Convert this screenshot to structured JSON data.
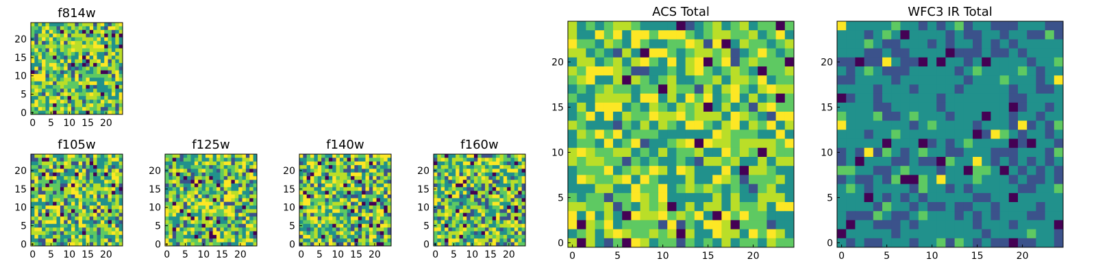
{
  "figure": {
    "description_colormap": "viridis",
    "palette": [
      "#440154",
      "#3b528b",
      "#21918c",
      "#5ec962",
      "#bade28",
      "#fde725"
    ]
  },
  "chart_data": [
    {
      "type": "heatmap",
      "title": "f814w",
      "grid_size": 25,
      "xticks": [
        "0",
        "5",
        "10",
        "15",
        "20"
      ],
      "yticks": [
        "0",
        "5",
        "10",
        "15",
        "20"
      ],
      "style": "acs"
    },
    {
      "type": "heatmap",
      "title": "f105w",
      "grid_size": 25,
      "xticks": [
        "0",
        "5",
        "10",
        "15",
        "20"
      ],
      "yticks": [
        "0",
        "5",
        "10",
        "15",
        "20"
      ],
      "style": "smooth"
    },
    {
      "type": "heatmap",
      "title": "f125w",
      "grid_size": 25,
      "xticks": [
        "0",
        "5",
        "10",
        "15",
        "20"
      ],
      "yticks": [
        "0",
        "5",
        "10",
        "15",
        "20"
      ],
      "style": "smooth"
    },
    {
      "type": "heatmap",
      "title": "f140w",
      "grid_size": 25,
      "xticks": [
        "0",
        "5",
        "10",
        "15",
        "20"
      ],
      "yticks": [
        "0",
        "5",
        "10",
        "15",
        "20"
      ],
      "style": "smooth"
    },
    {
      "type": "heatmap",
      "title": "f160w",
      "grid_size": 25,
      "xticks": [
        "0",
        "5",
        "10",
        "15",
        "20"
      ],
      "yticks": [
        "0",
        "5",
        "10",
        "15",
        "20"
      ],
      "style": "smooth"
    },
    {
      "type": "heatmap",
      "title": "ACS Total",
      "grid_size": 25,
      "xticks": [
        "0",
        "5",
        "10",
        "15",
        "20"
      ],
      "yticks": [
        "0",
        "5",
        "10",
        "15",
        "20"
      ],
      "style": "acs"
    },
    {
      "type": "heatmap",
      "title": "WFC3 IR Total",
      "grid_size": 25,
      "xticks": [
        "0",
        "5",
        "10",
        "15",
        "20"
      ],
      "yticks": [
        "0",
        "5",
        "10",
        "15",
        "20"
      ],
      "style": "ir"
    }
  ]
}
